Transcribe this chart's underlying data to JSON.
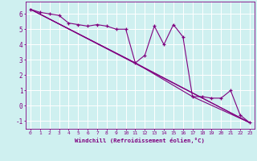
{
  "xlabel": "Windchill (Refroidissement éolien,°C)",
  "background_color": "#cff0f0",
  "grid_color": "#ffffff",
  "line_color": "#800080",
  "xlim": [
    -0.5,
    23.5
  ],
  "ylim": [
    -1.5,
    6.8
  ],
  "xticks": [
    0,
    1,
    2,
    3,
    4,
    5,
    6,
    7,
    8,
    9,
    10,
    11,
    12,
    13,
    14,
    15,
    16,
    17,
    18,
    19,
    20,
    21,
    22,
    23
  ],
  "yticks": [
    -1,
    0,
    1,
    2,
    3,
    4,
    5,
    6
  ],
  "data_x": [
    0,
    1,
    2,
    3,
    4,
    5,
    6,
    7,
    8,
    9,
    10,
    11,
    12,
    13,
    14,
    15,
    16,
    17,
    18,
    19,
    20,
    21,
    22,
    23
  ],
  "scatter_y": [
    6.3,
    6.1,
    6.0,
    5.9,
    5.4,
    5.3,
    5.2,
    5.3,
    5.2,
    5.0,
    5.0,
    2.8,
    3.3,
    5.2,
    4.0,
    5.3,
    4.5,
    0.6,
    0.6,
    0.5,
    0.5,
    1.0,
    -0.6,
    -1.1
  ],
  "line1_x": [
    0,
    23
  ],
  "line1_y": [
    6.3,
    -1.1
  ],
  "line2_x": [
    0,
    11,
    23
  ],
  "line2_y": [
    6.3,
    2.8,
    -1.1
  ],
  "line3_x": [
    0,
    11,
    17,
    23
  ],
  "line3_y": [
    6.3,
    2.8,
    0.6,
    -1.1
  ]
}
